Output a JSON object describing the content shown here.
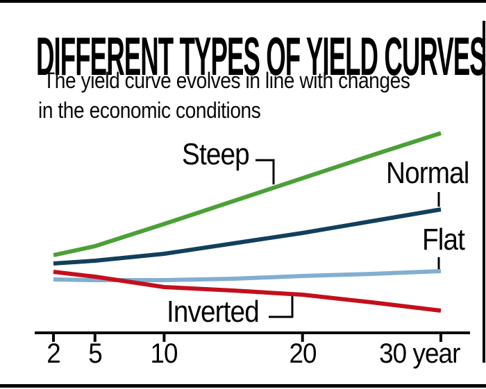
{
  "header": {
    "title": "DIFFERENT TYPES OF YIELD CURVES",
    "subtitle_line1": "The yield curve evolves in line with changes",
    "subtitle_line2": "in the economic conditions"
  },
  "chart_data": {
    "type": "line",
    "title": "DIFFERENT TYPES OF YIELD CURVES",
    "subtitle": "The yield curve evolves in line with changes in the economic conditions",
    "x": [
      2,
      5,
      10,
      15,
      20,
      25,
      30
    ],
    "x_axis": {
      "scale": "linear",
      "range": [
        2,
        30
      ],
      "unit": "year",
      "ticks": [
        2,
        5,
        10,
        20,
        30
      ],
      "tick_labels": [
        "2",
        "5",
        "10",
        "20",
        "30 year"
      ]
    },
    "y_axis": {
      "visible": false,
      "label": "",
      "note": "relative yield level, no scale shown"
    },
    "legend_position": "inline-labels-with-connectors",
    "grid": false,
    "series": [
      {
        "name": "Steep",
        "color": "#4ba037",
        "values": [
          112,
          125,
          157,
          190,
          223,
          256,
          288
        ]
      },
      {
        "name": "Normal",
        "color": "#123f5c",
        "values": [
          100,
          104,
          114,
          129,
          144,
          161,
          178
        ]
      },
      {
        "name": "Flat",
        "color": "#82aed0",
        "values": [
          77,
          76,
          76,
          78,
          82,
          85,
          89
        ]
      },
      {
        "name": "Inverted",
        "color": "#c40f1c",
        "values": [
          88,
          81,
          66,
          61,
          55,
          44,
          32
        ]
      }
    ],
    "colors": {
      "axis": "#000000",
      "text": "#000000",
      "background": "#ffffff"
    }
  }
}
